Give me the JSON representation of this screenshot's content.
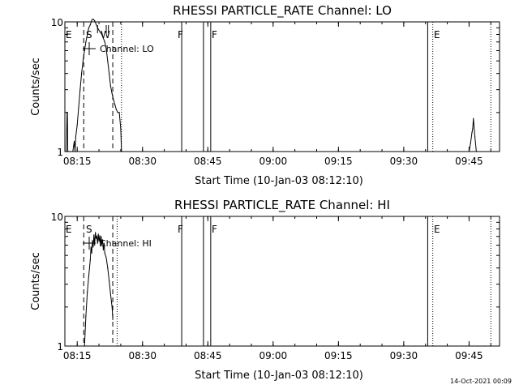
{
  "chart_data": [
    {
      "type": "line",
      "title": "RHESSI PARTICLE_RATE Channel: LO",
      "xlabel": "Start Time (10-Jan-03 08:12:10)",
      "ylabel": "Counts/sec",
      "yscale": "log",
      "ylim": [
        1,
        10
      ],
      "ytick_labels": [
        "1",
        "10"
      ],
      "xlim": [
        "08:12:10",
        "09:52:00"
      ],
      "xtick_labels": [
        "08:15",
        "08:30",
        "08:45",
        "09:00",
        "09:15",
        "09:30",
        "09:45"
      ],
      "legend": "Channel: LO",
      "flag_labels": [
        "E",
        "S",
        "W",
        "F",
        "F",
        "E"
      ],
      "series": [
        {
          "name": "Channel: LO",
          "x": [
            "08:12:30",
            "08:12:40",
            "08:12:45",
            "08:12:50",
            "08:12:55",
            "08:13:00",
            "08:13:10",
            "08:13:30",
            "08:14:00",
            "08:14:10",
            "08:14:20",
            "08:14:30",
            "08:14:40",
            "08:15:00",
            "08:15:20",
            "08:15:40",
            "08:16:00",
            "08:16:20",
            "08:16:40",
            "08:17:00",
            "08:17:20",
            "08:17:40",
            "08:18:00",
            "08:18:20",
            "08:18:40",
            "08:19:00",
            "08:19:20",
            "08:19:40",
            "08:20:00",
            "08:20:20",
            "08:20:40",
            "08:21:00",
            "08:21:20",
            "08:21:40",
            "08:22:00",
            "08:22:20",
            "08:22:40",
            "08:23:00",
            "08:23:20",
            "08:23:40",
            "08:24:00",
            "08:24:20",
            "08:24:40",
            "08:25:00",
            "08:25:10",
            "08:25:20",
            "09:45:00",
            "09:45:20",
            "09:45:40",
            "09:45:50",
            "09:46:00",
            "09:46:20",
            "09:46:40"
          ],
          "y": [
            1,
            2,
            2,
            1,
            1,
            1,
            1,
            1,
            1,
            1.1,
            1.2,
            1,
            1.3,
            1.6,
            2.2,
            3,
            4,
            5,
            6,
            7,
            8,
            9,
            9.5,
            10.3,
            10.5,
            10.2,
            9.6,
            9,
            8.6,
            8.3,
            8,
            7.5,
            7,
            6.2,
            5,
            4,
            3.2,
            2.8,
            2.5,
            2.3,
            2.1,
            2,
            2,
            1.5,
            1,
            1,
            1,
            1.15,
            1.4,
            1.5,
            1.8,
            1.3,
            1
          ]
        }
      ],
      "vertical_lines": [
        "08:39:00",
        "08:44:00",
        "08:45:40",
        "09:35:30"
      ],
      "dashed_lines": [
        "08:16:30",
        "08:23:10"
      ],
      "dotted_lines": [
        "08:25:10",
        "09:36:40",
        "09:50:00"
      ],
      "tick_marks": [
        "08:19:40",
        "08:21:40",
        "08:22:10"
      ]
    },
    {
      "type": "line",
      "title": "RHESSI PARTICLE_RATE Channel: HI",
      "xlabel": "Start Time (10-Jan-03 08:12:10)",
      "ylabel": "Counts/sec",
      "yscale": "log",
      "ylim": [
        1,
        10
      ],
      "ytick_labels": [
        "1",
        "10"
      ],
      "xlim": [
        "08:12:10",
        "09:52:00"
      ],
      "xtick_labels": [
        "08:15",
        "08:30",
        "08:45",
        "09:00",
        "09:15",
        "09:30",
        "09:45"
      ],
      "legend": "Channel: HI",
      "flag_labels": [
        "E",
        "S",
        "F",
        "F",
        "E"
      ],
      "series": [
        {
          "name": "Channel: HI",
          "x": [
            "08:16:40",
            "08:17:00",
            "08:17:20",
            "08:17:40",
            "08:18:00",
            "08:18:10",
            "08:18:20",
            "08:18:30",
            "08:18:40",
            "08:18:50",
            "08:19:00",
            "08:19:10",
            "08:19:20",
            "08:19:30",
            "08:19:40",
            "08:19:50",
            "08:20:00",
            "08:20:10",
            "08:20:20",
            "08:20:30",
            "08:20:40",
            "08:20:50",
            "08:21:00",
            "08:21:10",
            "08:21:20",
            "08:21:40",
            "08:22:00",
            "08:22:20",
            "08:22:40",
            "08:23:00",
            "08:23:10"
          ],
          "y": [
            1,
            1.7,
            2.6,
            3.5,
            4.6,
            5.8,
            5.2,
            6.5,
            5.8,
            7.2,
            6,
            7.5,
            6.8,
            7,
            6.2,
            7.3,
            6.4,
            7.1,
            5.9,
            7,
            6.1,
            6.6,
            5.5,
            6.2,
            5.2,
            4.8,
            4,
            3.2,
            2.5,
            2,
            1.6
          ]
        }
      ],
      "vertical_lines": [
        "08:39:00",
        "08:44:00",
        "08:45:40",
        "09:35:30"
      ],
      "dashed_lines": [
        "08:16:30",
        "08:23:10"
      ],
      "dotted_lines": [
        "08:24:10",
        "09:36:40",
        "09:50:00"
      ],
      "tick_marks": []
    }
  ],
  "footer_timestamp": "14-Oct-2021 00:09"
}
